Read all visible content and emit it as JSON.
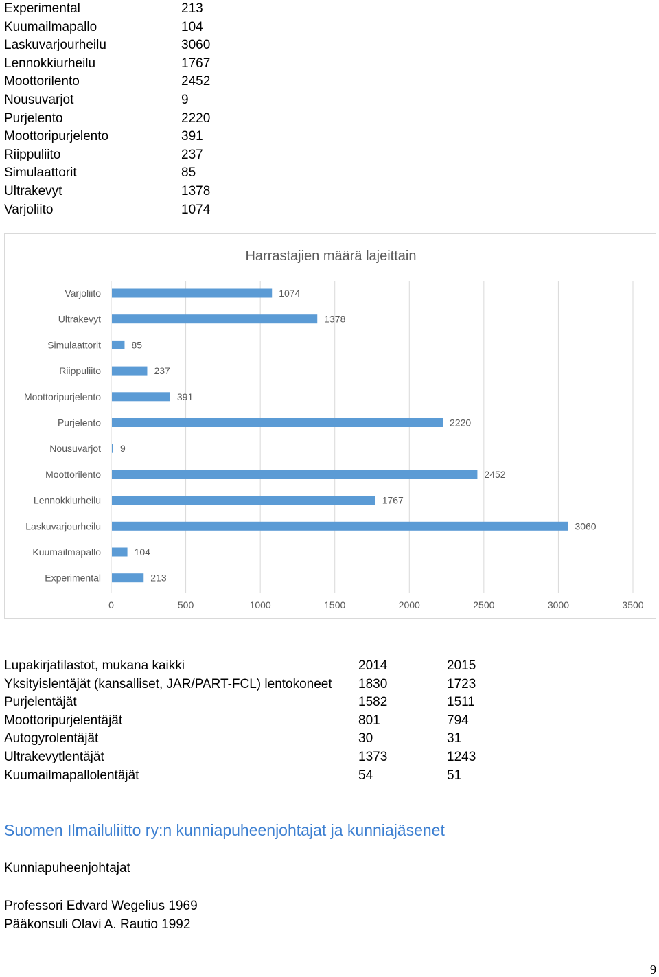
{
  "top_table": [
    {
      "name": "Experimental",
      "value": "213"
    },
    {
      "name": "Kuumailmapallo",
      "value": "104"
    },
    {
      "name": "Laskuvarjourheilu",
      "value": "3060"
    },
    {
      "name": "Lennokkiurheilu",
      "value": "1767"
    },
    {
      "name": "Moottorilento",
      "value": "2452"
    },
    {
      "name": "Nousuvarjot",
      "value": "9"
    },
    {
      "name": "Purjelento",
      "value": "2220"
    },
    {
      "name": "Moottoripurjelento",
      "value": "391"
    },
    {
      "name": "Riippuliito",
      "value": "237"
    },
    {
      "name": "Simulaattorit",
      "value": "85"
    },
    {
      "name": "Ultrakevyt",
      "value": "1378"
    },
    {
      "name": "Varjoliito",
      "value": "1074"
    }
  ],
  "chart_data": {
    "type": "bar",
    "orientation": "horizontal",
    "title": "Harrastajien määrä lajeittain",
    "categories": [
      "Varjoliito",
      "Ultrakevyt",
      "Simulaattorit",
      "Riippuliito",
      "Moottoripurjelento",
      "Purjelento",
      "Nousuvarjot",
      "Moottorilento",
      "Lennokkiurheilu",
      "Laskuvarjourheilu",
      "Kuumailmapallo",
      "Experimental"
    ],
    "values": [
      1074,
      1378,
      85,
      237,
      391,
      2220,
      9,
      2452,
      1767,
      3060,
      104,
      213
    ],
    "xlim": [
      0,
      3500
    ],
    "xticks": [
      0,
      500,
      1000,
      1500,
      2000,
      2500,
      3000,
      3500
    ],
    "grid": true,
    "bar_color": "#5b9bd5",
    "data_labels": true
  },
  "license_table": {
    "header": [
      "Lupakirjatilastot, mukana kaikki",
      "2014",
      "2015"
    ],
    "rows": [
      [
        "Yksityislentäjät (kansalliset, JAR/PART-FCL) lentokoneet",
        "1830",
        "1723"
      ],
      [
        "Purjelentäjät",
        "1582",
        "1511"
      ],
      [
        "Moottoripurjelentäjät",
        "801",
        "794"
      ],
      [
        "Autogyrolentäjät",
        "30",
        "31"
      ],
      [
        "Ultrakevytlentäjät",
        "1373",
        "1243"
      ],
      [
        "Kuumailmapallolentäjät",
        "54",
        "51"
      ]
    ]
  },
  "section": {
    "heading": "Suomen Ilmailuliitto ry:n kunniapuheenjohtajat ja kunniajäsenet",
    "heading_color": "#3c7fd1",
    "subheading": "Kunniapuheenjohtajat",
    "members": [
      "Professori Edvard Wegelius 1969",
      "Pääkonsuli Olavi A. Rautio 1992"
    ]
  },
  "page_number": "9"
}
